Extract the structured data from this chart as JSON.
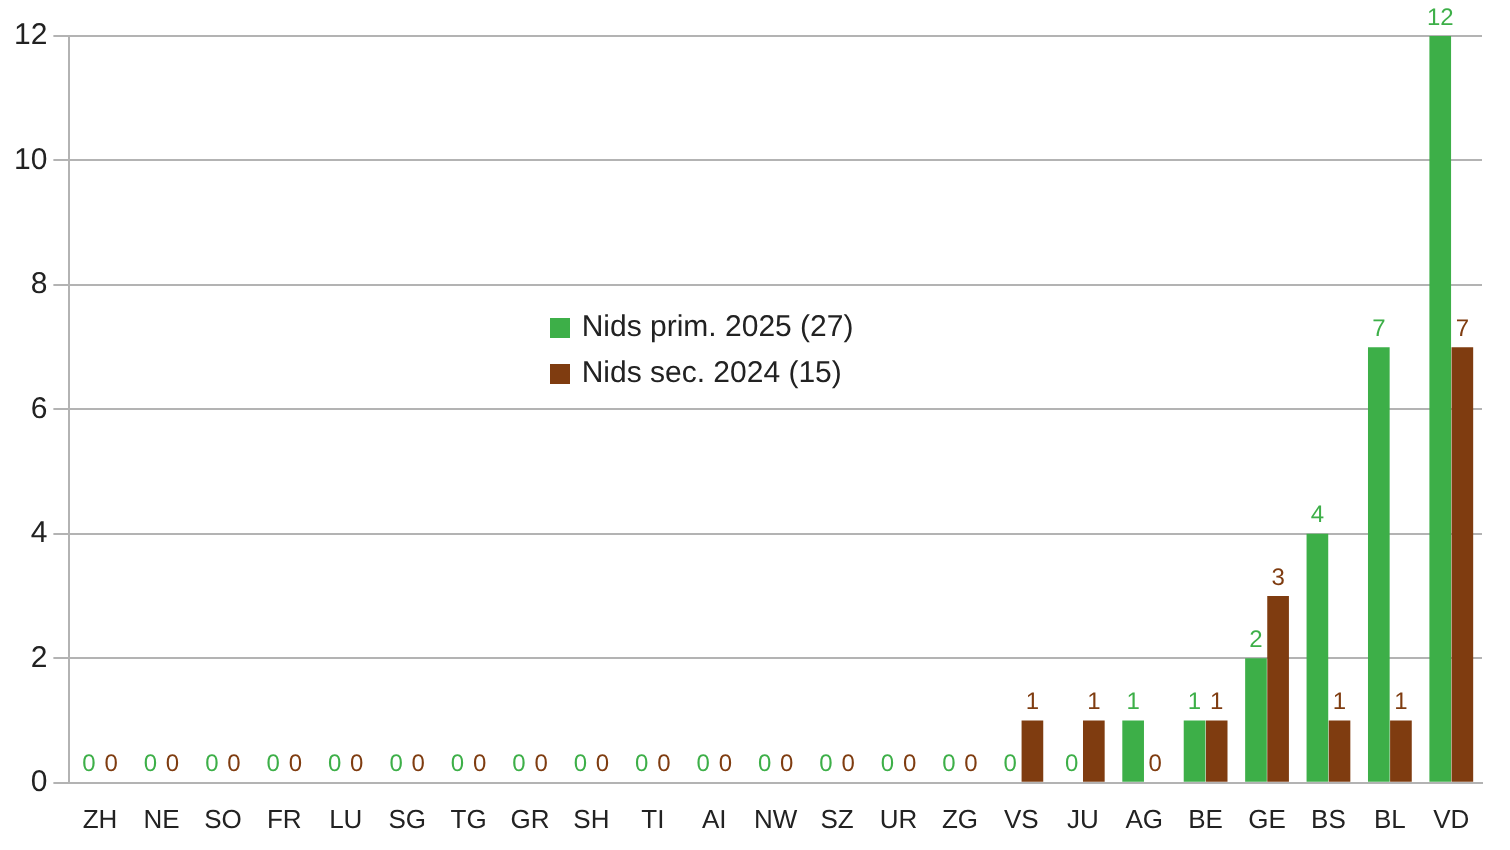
{
  "chart_data": {
    "type": "bar",
    "categories": [
      "ZH",
      "NE",
      "SO",
      "FR",
      "LU",
      "SG",
      "TG",
      "GR",
      "SH",
      "TI",
      "AI",
      "NW",
      "SZ",
      "UR",
      "ZG",
      "VS",
      "JU",
      "AG",
      "BE",
      "GE",
      "BS",
      "BL",
      "VD"
    ],
    "series": [
      {
        "name": "Nids prim. 2025 (27)",
        "color": "#3daf48",
        "values": [
          0,
          0,
          0,
          0,
          0,
          0,
          0,
          0,
          0,
          0,
          0,
          0,
          0,
          0,
          0,
          0,
          0,
          1,
          1,
          2,
          4,
          7,
          12
        ]
      },
      {
        "name": "Nids sec. 2024 (15)",
        "color": "#7f3c10",
        "values": [
          0,
          0,
          0,
          0,
          0,
          0,
          0,
          0,
          0,
          0,
          0,
          0,
          0,
          0,
          0,
          1,
          1,
          0,
          1,
          3,
          1,
          1,
          7
        ]
      }
    ],
    "ylim": [
      0,
      12
    ],
    "yticks": [
      0,
      2,
      4,
      6,
      8,
      10,
      12
    ],
    "grid": "y",
    "legend": "center",
    "data_labels": true
  }
}
